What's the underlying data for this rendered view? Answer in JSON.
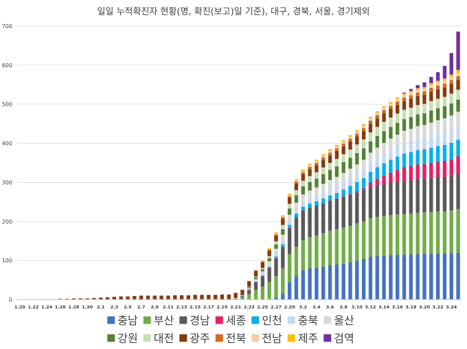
{
  "chart_data": {
    "type": "bar",
    "stacked": true,
    "title": "일일 누적확진자 현황(명, 확진(보고)일 기준), 대구, 경북, 서울, 경기제외",
    "xlabel": "",
    "ylabel": "",
    "ylim": [
      0,
      700
    ],
    "yticks": [
      0,
      100,
      200,
      300,
      400,
      500,
      600,
      700
    ],
    "grid": true,
    "legend_position": "bottom",
    "x_tick_labels": [
      "1.20",
      "1.22",
      "1.24",
      "1.26",
      "1.28",
      "1.30",
      "2.1",
      "2.3",
      "2.5",
      "2.7",
      "2.9",
      "2.11",
      "2.13",
      "2.15",
      "2.17",
      "2.19",
      "2.21",
      "2.23",
      "2.25",
      "2.27",
      "2.29",
      "3.2",
      "3.4",
      "3.6",
      "3.8",
      "3.10",
      "3.12",
      "3.14",
      "3.16",
      "3.18",
      "3.20",
      "3.22",
      "3.24"
    ],
    "categories": [
      "1.20",
      "1.21",
      "1.22",
      "1.23",
      "1.24",
      "1.25",
      "1.26",
      "1.27",
      "1.28",
      "1.29",
      "1.30",
      "1.31",
      "2.1",
      "2.2",
      "2.3",
      "2.4",
      "2.5",
      "2.6",
      "2.7",
      "2.8",
      "2.9",
      "2.10",
      "2.11",
      "2.12",
      "2.13",
      "2.14",
      "2.15",
      "2.16",
      "2.17",
      "2.18",
      "2.19",
      "2.20",
      "2.21",
      "2.22",
      "2.23",
      "2.24",
      "2.25",
      "2.26",
      "2.27",
      "2.28",
      "2.29",
      "3.1",
      "3.2",
      "3.3",
      "3.4",
      "3.5",
      "3.6",
      "3.7",
      "3.8",
      "3.9",
      "3.10",
      "3.11",
      "3.12",
      "3.13",
      "3.14",
      "3.15",
      "3.16",
      "3.17",
      "3.18",
      "3.19",
      "3.20",
      "3.21",
      "3.22",
      "3.23",
      "3.24",
      "3.25"
    ],
    "series": [
      {
        "name": "충남",
        "color": "#4472C4",
        "values": [
          0,
          0,
          0,
          0,
          0,
          0,
          0,
          0,
          0,
          0,
          0,
          0,
          0,
          0,
          0,
          0,
          0,
          0,
          0,
          0,
          0,
          0,
          0,
          0,
          0,
          0,
          0,
          0,
          0,
          0,
          0,
          0,
          0,
          0,
          0,
          0,
          0,
          0,
          5,
          15,
          45,
          60,
          75,
          80,
          82,
          85,
          88,
          90,
          92,
          95,
          100,
          104,
          110,
          112,
          113,
          114,
          115,
          115,
          115,
          116,
          117,
          117,
          118,
          118,
          119,
          120
        ]
      },
      {
        "name": "부산",
        "color": "#70AD47",
        "values": [
          0,
          0,
          0,
          0,
          0,
          0,
          0,
          0,
          0,
          0,
          0,
          0,
          0,
          0,
          0,
          0,
          0,
          0,
          0,
          0,
          0,
          0,
          0,
          0,
          0,
          0,
          0,
          0,
          0,
          0,
          0,
          0,
          2,
          5,
          14,
          25,
          33,
          45,
          55,
          65,
          72,
          75,
          78,
          80,
          82,
          85,
          88,
          90,
          92,
          94,
          95,
          96,
          98,
          100,
          101,
          102,
          103,
          104,
          105,
          106,
          106,
          107,
          108,
          108,
          109,
          112
        ]
      },
      {
        "name": "경남",
        "color": "#595959",
        "values": [
          0,
          0,
          0,
          0,
          0,
          0,
          0,
          0,
          0,
          0,
          0,
          0,
          0,
          0,
          0,
          0,
          0,
          0,
          0,
          0,
          0,
          0,
          0,
          0,
          0,
          0,
          0,
          0,
          0,
          0,
          0,
          0,
          0,
          3,
          10,
          18,
          25,
          35,
          45,
          55,
          65,
          75,
          75,
          75,
          76,
          76,
          77,
          78,
          78,
          79,
          79,
          80,
          81,
          82,
          83,
          84,
          84,
          85,
          86,
          87,
          87,
          88,
          88,
          89,
          90,
          92
        ]
      },
      {
        "name": "세종",
        "color": "#E91E63",
        "values": [
          0,
          0,
          0,
          0,
          0,
          0,
          0,
          0,
          0,
          0,
          0,
          0,
          0,
          0,
          0,
          0,
          0,
          0,
          0,
          0,
          0,
          0,
          0,
          0,
          0,
          0,
          0,
          0,
          0,
          0,
          0,
          0,
          0,
          0,
          1,
          1,
          1,
          1,
          1,
          1,
          1,
          1,
          1,
          1,
          1,
          1,
          1,
          1,
          2,
          2,
          3,
          5,
          10,
          15,
          20,
          25,
          30,
          35,
          36,
          37,
          37,
          38,
          39,
          40,
          41,
          43
        ]
      },
      {
        "name": "인천",
        "color": "#00B0F0",
        "values": [
          0,
          0,
          0,
          0,
          0,
          0,
          0,
          0,
          0,
          0,
          0,
          0,
          0,
          0,
          0,
          0,
          0,
          0,
          0,
          0,
          0,
          0,
          0,
          0,
          0,
          0,
          0,
          0,
          0,
          0,
          0,
          0,
          0,
          1,
          1,
          2,
          3,
          3,
          4,
          6,
          8,
          9,
          9,
          10,
          11,
          12,
          13,
          14,
          18,
          21,
          24,
          26,
          28,
          30,
          32,
          33,
          34,
          35,
          36,
          37,
          38,
          39,
          40,
          41,
          42,
          42
        ]
      },
      {
        "name": "충북",
        "color": "#C5D9F1",
        "values": [
          0,
          0,
          0,
          0,
          0,
          0,
          0,
          0,
          0,
          0,
          0,
          0,
          0,
          0,
          0,
          0,
          0,
          0,
          0,
          0,
          0,
          0,
          0,
          0,
          0,
          0,
          0,
          0,
          0,
          0,
          0,
          0,
          1,
          1,
          2,
          3,
          5,
          6,
          8,
          10,
          11,
          12,
          13,
          14,
          15,
          16,
          17,
          18,
          19,
          20,
          21,
          22,
          23,
          24,
          25,
          26,
          27,
          28,
          29,
          30,
          31,
          32,
          33,
          34,
          35,
          36
        ]
      },
      {
        "name": "울산",
        "color": "#D9D9D9",
        "values": [
          0,
          0,
          0,
          0,
          0,
          0,
          0,
          0,
          0,
          0,
          0,
          0,
          0,
          0,
          0,
          0,
          0,
          0,
          0,
          0,
          0,
          0,
          0,
          0,
          0,
          0,
          0,
          0,
          0,
          0,
          0,
          0,
          0,
          0,
          1,
          3,
          5,
          8,
          12,
          14,
          15,
          16,
          18,
          19,
          20,
          21,
          22,
          23,
          23,
          24,
          24,
          25,
          26,
          26,
          27,
          28,
          29,
          30,
          30,
          31,
          31,
          32,
          33,
          34,
          35,
          36
        ]
      },
      {
        "name": "강원",
        "color": "#548235",
        "values": [
          0,
          0,
          0,
          0,
          0,
          0,
          0,
          0,
          0,
          0,
          0,
          0,
          0,
          0,
          0,
          0,
          0,
          0,
          0,
          0,
          0,
          0,
          0,
          0,
          0,
          0,
          0,
          0,
          0,
          0,
          0,
          0,
          1,
          2,
          3,
          5,
          6,
          8,
          11,
          14,
          16,
          19,
          21,
          22,
          23,
          25,
          26,
          27,
          28,
          28,
          29,
          29,
          29,
          30,
          30,
          30,
          30,
          30,
          30,
          30,
          30,
          31,
          31,
          31,
          31,
          31
        ]
      },
      {
        "name": "대전",
        "color": "#C6E0B4",
        "values": [
          0,
          0,
          0,
          0,
          0,
          0,
          0,
          0,
          0,
          0,
          0,
          0,
          0,
          0,
          0,
          0,
          0,
          0,
          0,
          0,
          0,
          0,
          0,
          0,
          0,
          0,
          0,
          0,
          0,
          0,
          0,
          0,
          0,
          0,
          1,
          2,
          3,
          5,
          8,
          11,
          12,
          13,
          14,
          15,
          16,
          17,
          18,
          19,
          20,
          21,
          22,
          23,
          23,
          23,
          24,
          24,
          24,
          24,
          24,
          24,
          24,
          24,
          24,
          24,
          25,
          25
        ]
      },
      {
        "name": "광주",
        "color": "#843C0C",
        "values": [
          0,
          0,
          0,
          1,
          1,
          1,
          2,
          2,
          3,
          3,
          3,
          4,
          5,
          6,
          7,
          8,
          8,
          9,
          10,
          10,
          10,
          10,
          10,
          11,
          11,
          11,
          12,
          12,
          12,
          12,
          13,
          13,
          13,
          13,
          14,
          14,
          15,
          15,
          15,
          16,
          16,
          17,
          17,
          18,
          18,
          19,
          19,
          20,
          20,
          21,
          21,
          21,
          22,
          22,
          22,
          22,
          22,
          22,
          23,
          23,
          23,
          24,
          24,
          24,
          25,
          25
        ]
      },
      {
        "name": "전북",
        "color": "#D56B1E",
        "values": [
          0,
          0,
          0,
          0,
          0,
          0,
          0,
          0,
          0,
          0,
          0,
          0,
          0,
          0,
          0,
          0,
          0,
          0,
          0,
          0,
          0,
          0,
          0,
          0,
          0,
          0,
          0,
          0,
          0,
          0,
          0,
          0,
          0,
          0,
          0,
          1,
          1,
          2,
          3,
          4,
          4,
          5,
          5,
          6,
          6,
          7,
          7,
          7,
          7,
          7,
          7,
          8,
          8,
          8,
          8,
          8,
          9,
          9,
          9,
          9,
          9,
          10,
          10,
          10,
          10,
          10
        ]
      },
      {
        "name": "전남",
        "color": "#F8CBAD",
        "values": [
          0,
          0,
          0,
          0,
          0,
          0,
          0,
          0,
          0,
          0,
          0,
          0,
          0,
          0,
          0,
          0,
          0,
          0,
          0,
          0,
          0,
          0,
          0,
          0,
          0,
          0,
          0,
          0,
          0,
          0,
          0,
          0,
          0,
          0,
          0,
          1,
          1,
          1,
          2,
          2,
          3,
          3,
          3,
          4,
          4,
          4,
          5,
          5,
          5,
          5,
          5,
          6,
          6,
          6,
          6,
          6,
          7,
          7,
          7,
          7,
          7,
          7,
          7,
          8,
          8,
          8
        ]
      },
      {
        "name": "제주",
        "color": "#FFC000",
        "values": [
          0,
          0,
          0,
          0,
          0,
          0,
          0,
          0,
          0,
          0,
          0,
          0,
          0,
          0,
          0,
          0,
          0,
          0,
          0,
          0,
          0,
          0,
          0,
          0,
          0,
          0,
          0,
          0,
          0,
          0,
          0,
          0,
          0,
          1,
          1,
          2,
          2,
          3,
          3,
          3,
          3,
          3,
          4,
          4,
          4,
          4,
          4,
          4,
          4,
          4,
          4,
          4,
          4,
          4,
          4,
          4,
          4,
          4,
          4,
          4,
          4,
          5,
          5,
          5,
          6,
          8
        ]
      },
      {
        "name": "검역",
        "color": "#7030A0",
        "values": [
          0,
          0,
          0,
          0,
          0,
          0,
          0,
          0,
          0,
          0,
          0,
          0,
          0,
          0,
          0,
          0,
          0,
          0,
          0,
          0,
          0,
          0,
          0,
          0,
          0,
          0,
          0,
          0,
          0,
          0,
          0,
          0,
          0,
          0,
          0,
          0,
          0,
          0,
          0,
          0,
          0,
          0,
          0,
          0,
          0,
          0,
          0,
          0,
          0,
          0,
          0,
          0,
          0,
          0,
          0,
          0,
          0,
          2,
          5,
          8,
          12,
          16,
          22,
          32,
          55,
          98
        ]
      }
    ]
  }
}
